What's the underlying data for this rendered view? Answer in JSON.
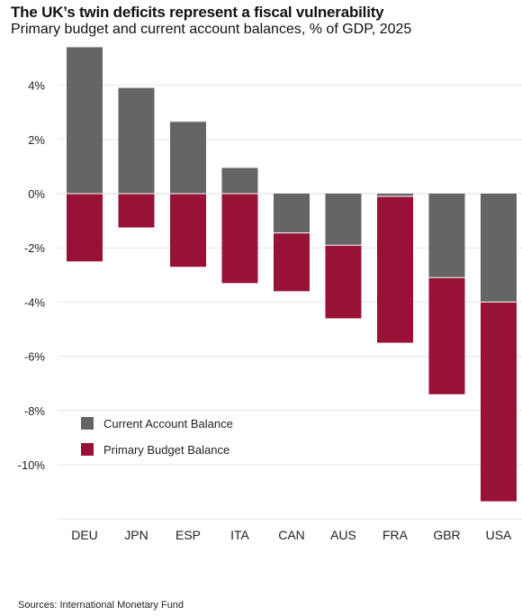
{
  "header": {
    "title": "The UK’s twin deficits represent a fiscal vulnerability",
    "subtitle": "Primary budget and current account balances, % of GDP, 2025"
  },
  "footer": {
    "source": "Sources: International Monetary Fund"
  },
  "colors": {
    "current_account": "#656565",
    "primary_budget": "#981238",
    "gridline": "#e6e6e6",
    "zero_line": "#dddddd"
  },
  "chart_data": {
    "type": "bar",
    "stacked": true,
    "categories": [
      "DEU",
      "JPN",
      "ESP",
      "ITA",
      "CAN",
      "AUS",
      "FRA",
      "GBR",
      "USA"
    ],
    "series": [
      {
        "name": "Current Account Balance",
        "values": [
          5.4,
          3.9,
          2.65,
          0.95,
          -1.45,
          -1.9,
          -0.1,
          -3.1,
          -4.0
        ]
      },
      {
        "name": "Primary Budget Balance",
        "values": [
          -2.5,
          -1.25,
          -2.7,
          -3.3,
          -2.15,
          -2.7,
          -5.4,
          -4.3,
          -7.35
        ]
      }
    ],
    "yticks": [
      4,
      2,
      0,
      -2,
      -4,
      -6,
      -8,
      -10
    ],
    "ytick_labels": [
      "4%",
      "2%",
      "0%",
      "-2%",
      "-4%",
      "-6%",
      "-8%",
      "-10%"
    ],
    "ylim": [
      -12,
      5.4
    ],
    "grid": true,
    "legend_position": "lower-left"
  }
}
